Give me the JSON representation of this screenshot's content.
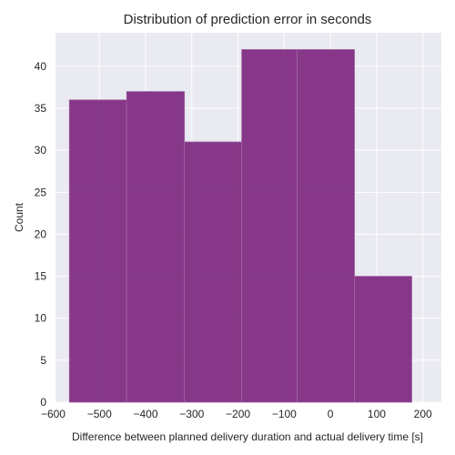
{
  "chart_data": {
    "type": "bar",
    "title": "Distribution of prediction error in seconds",
    "xlabel": "Difference between planned delivery duration and actual delivery time [s]",
    "ylabel": "Count",
    "xlim": [
      -595,
      240
    ],
    "ylim": [
      0,
      44
    ],
    "xticks": [
      -600,
      -500,
      -400,
      -300,
      -200,
      -100,
      0,
      100,
      200
    ],
    "xtick_labels": [
      "−600",
      "−500",
      "−400",
      "−300",
      "−200",
      "−100",
      "0",
      "100",
      "200"
    ],
    "yticks": [
      0,
      5,
      10,
      15,
      20,
      25,
      30,
      35,
      40
    ],
    "ytick_labels": [
      "0",
      "5",
      "10",
      "15",
      "20",
      "25",
      "30",
      "35",
      "40"
    ],
    "bins": [
      {
        "x0": -565,
        "x1": -441,
        "count": 36
      },
      {
        "x0": -441,
        "x1": -316,
        "count": 37
      },
      {
        "x0": -316,
        "x1": -192,
        "count": 31
      },
      {
        "x0": -192,
        "x1": -72,
        "count": 42
      },
      {
        "x0": -72,
        "x1": 52,
        "count": 42
      },
      {
        "x0": 52,
        "x1": 176,
        "count": 15
      }
    ],
    "grid": true,
    "colors": {
      "bar": "#7b247c",
      "bar_edge": "#a064a2",
      "plot_background": "#eaeaf2",
      "grid": "#ffffff",
      "text": "#262626"
    }
  }
}
